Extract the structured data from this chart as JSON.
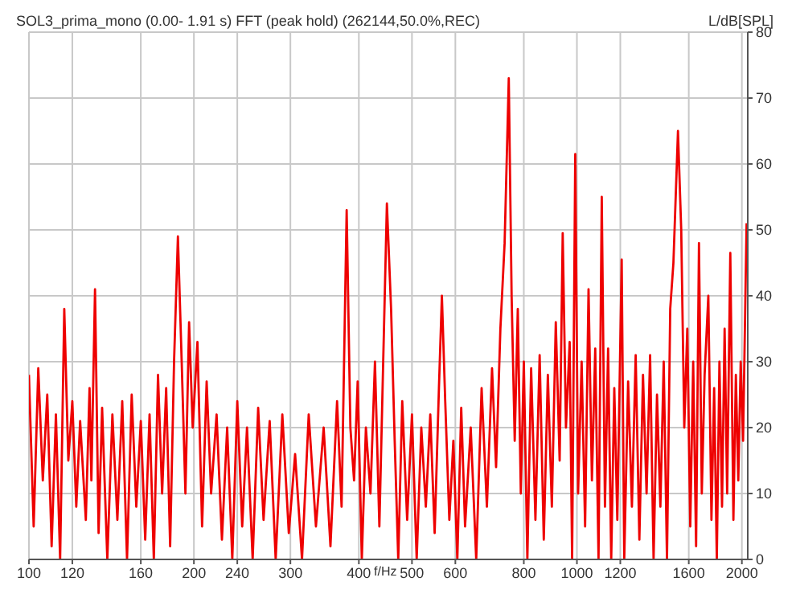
{
  "chart_data": {
    "type": "line",
    "title": "SOL3_prima_mono (0.00- 1.91 s) FFT (peak hold) (262144,50.0%,REC)",
    "xlabel": "f/Hz",
    "ylabel": "L/dB[SPL]",
    "log": "x",
    "grid": true,
    "marker": "none",
    "line_style": "solid",
    "xlim": [
      100,
      2050
    ],
    "xticks": [
      100,
      120,
      160,
      200,
      240,
      300,
      400,
      500,
      600,
      800,
      1000,
      1200,
      1600,
      2000
    ],
    "ylim": [
      0,
      80
    ],
    "yticks": [
      0,
      10,
      20,
      30,
      40,
      50,
      60,
      70,
      80
    ],
    "series": [
      {
        "color": "#ee0000",
        "x": [
          100,
          102,
          104,
          106,
          108,
          110,
          112,
          114,
          116,
          118,
          120,
          122,
          124,
          127,
          129,
          130,
          132,
          134,
          136,
          139,
          142,
          145,
          148,
          151,
          154,
          157,
          160,
          163,
          166,
          169,
          172,
          175,
          178,
          181,
          184,
          187,
          190,
          193,
          196,
          199,
          203,
          207,
          211,
          215,
          220,
          225,
          230,
          235,
          240,
          245,
          250,
          256,
          262,
          268,
          275,
          282,
          290,
          298,
          306,
          315,
          324,
          334,
          345,
          355,
          365,
          372,
          380,
          386,
          392,
          398,
          405,
          412,
          420,
          428,
          436,
          450,
          458,
          465,
          472,
          480,
          490,
          500,
          510,
          520,
          530,
          540,
          550,
          560,
          567,
          575,
          585,
          595,
          605,
          615,
          625,
          640,
          655,
          670,
          685,
          700,
          712,
          725,
          738,
          751,
          760,
          770,
          780,
          790,
          800,
          812,
          825,
          840,
          855,
          870,
          885,
          900,
          915,
          930,
          942,
          955,
          970,
          980,
          993,
          1005,
          1020,
          1035,
          1050,
          1065,
          1080,
          1095,
          1110,
          1125,
          1140,
          1155,
          1170,
          1185,
          1207,
          1220,
          1240,
          1260,
          1280,
          1300,
          1320,
          1340,
          1360,
          1380,
          1400,
          1420,
          1440,
          1460,
          1480,
          1500,
          1529,
          1550,
          1570,
          1590,
          1610,
          1630,
          1650,
          1670,
          1690,
          1710,
          1737,
          1760,
          1780,
          1800,
          1820,
          1840,
          1860,
          1880,
          1905,
          1930,
          1950,
          1970,
          1990,
          2010,
          2040
        ],
        "values": [
          28,
          5,
          29,
          12,
          25,
          2,
          22,
          0,
          38,
          15,
          24,
          8,
          21,
          6,
          26,
          12,
          41,
          4,
          23,
          0,
          22,
          6,
          24,
          0,
          25,
          8,
          21,
          3,
          22,
          0,
          28,
          10,
          26,
          2,
          30,
          49,
          30,
          10,
          36,
          20,
          33,
          5,
          27,
          10,
          22,
          3,
          20,
          0,
          24,
          5,
          20,
          0,
          23,
          6,
          21,
          0,
          22,
          4,
          16,
          0,
          22,
          5,
          20,
          2,
          24,
          8,
          53,
          20,
          12,
          27,
          0,
          20,
          10,
          30,
          5,
          54,
          38,
          18,
          0,
          24,
          6,
          22,
          0,
          20,
          8,
          22,
          4,
          26,
          40,
          24,
          6,
          18,
          0,
          23,
          5,
          20,
          0,
          26,
          8,
          29,
          14,
          35,
          48,
          73,
          40,
          18,
          38,
          10,
          30,
          0,
          29,
          6,
          31,
          3,
          28,
          8,
          36,
          15,
          49.5,
          20,
          33,
          0,
          61.5,
          10,
          30,
          5,
          41,
          12,
          32,
          0,
          55,
          8,
          32,
          0,
          26,
          6,
          45.5,
          0,
          27,
          8,
          31,
          3,
          28,
          10,
          31,
          0,
          25,
          8,
          30,
          0,
          38,
          45,
          65,
          50,
          20,
          35,
          5,
          30,
          2,
          48,
          10,
          28,
          40,
          6,
          26,
          0,
          30,
          8,
          35,
          10,
          46.5,
          6,
          28,
          12,
          30,
          18,
          51
        ]
      }
    ]
  }
}
